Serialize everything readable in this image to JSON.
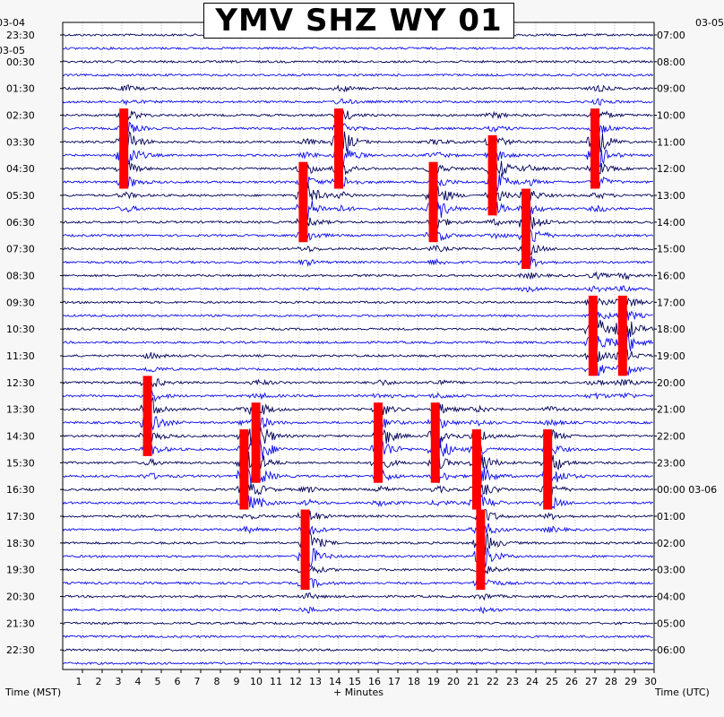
{
  "title": "YMV SHZ WY 01",
  "left_axis_label": "Time (MST)",
  "right_axis_label": "Time (UTC)",
  "x_axis_label": "+ Minutes",
  "left_date_labels": [
    "03-04",
    "03-05"
  ],
  "right_date_labels": [
    "03-05",
    "00:00 03-06"
  ],
  "colors": {
    "trace_dark": "#00005a",
    "trace_blue": "#0a0af0",
    "event": "#ff0000",
    "background": "#f7f7f7",
    "plot_bg": "#ffffff"
  },
  "chart_data": {
    "type": "line",
    "subtype": "helicorder",
    "title": "YMV SHZ WY 01",
    "xlabel": "+ Minutes",
    "ylabel_left": "Time (MST)",
    "ylabel_right": "Time (UTC)",
    "xlim": [
      0,
      30
    ],
    "x_ticks": [
      "1",
      "2",
      "3",
      "4",
      "5",
      "6",
      "7",
      "8",
      "9",
      "10",
      "11",
      "12",
      "13",
      "14",
      "15",
      "16",
      "17",
      "18",
      "19",
      "20",
      "21",
      "22",
      "23",
      "24",
      "25",
      "26",
      "27",
      "28",
      "29",
      "30"
    ],
    "grid": true,
    "lines_per_hour": 2,
    "series": [
      {
        "values": [
          0
        ]
      },
      {
        "values": [
          0
        ]
      }
    ],
    "rows_mst": [
      "23:30",
      "00:30",
      "01:30",
      "02:30",
      "03:30",
      "04:30",
      "05:30",
      "06:30",
      "07:30",
      "08:30",
      "09:30",
      "10:30",
      "11:30",
      "12:30",
      "13:30",
      "14:30",
      "15:30",
      "16:30",
      "17:30",
      "18:30",
      "19:30",
      "20:30",
      "21:30",
      "22:30"
    ],
    "rows_utc": [
      "07:00",
      "08:00",
      "09:00",
      "10:00",
      "11:00",
      "12:00",
      "13:00",
      "14:00",
      "15:00",
      "16:00",
      "17:00",
      "18:00",
      "19:00",
      "20:00",
      "21:00",
      "22:00",
      "23:00",
      "00:00 03-06",
      "01:00",
      "02:00",
      "03:00",
      "04:00",
      "05:00",
      "06:00"
    ],
    "events": [
      {
        "x": 3.1,
        "hour_index": 4
      },
      {
        "x": 12.2,
        "hour_index": 6
      },
      {
        "x": 14.0,
        "hour_index": 4
      },
      {
        "x": 18.8,
        "hour_index": 6
      },
      {
        "x": 21.8,
        "hour_index": 5
      },
      {
        "x": 23.5,
        "hour_index": 7
      },
      {
        "x": 27.0,
        "hour_index": 4
      },
      {
        "x": 28.4,
        "hour_index": 11
      },
      {
        "x": 26.9,
        "hour_index": 11
      },
      {
        "x": 4.3,
        "hour_index": 14
      },
      {
        "x": 9.8,
        "hour_index": 15
      },
      {
        "x": 9.2,
        "hour_index": 16
      },
      {
        "x": 16.0,
        "hour_index": 15
      },
      {
        "x": 18.9,
        "hour_index": 15
      },
      {
        "x": 21.0,
        "hour_index": 16
      },
      {
        "x": 12.3,
        "hour_index": 19
      },
      {
        "x": 21.2,
        "hour_index": 19
      },
      {
        "x": 24.6,
        "hour_index": 16
      }
    ]
  }
}
